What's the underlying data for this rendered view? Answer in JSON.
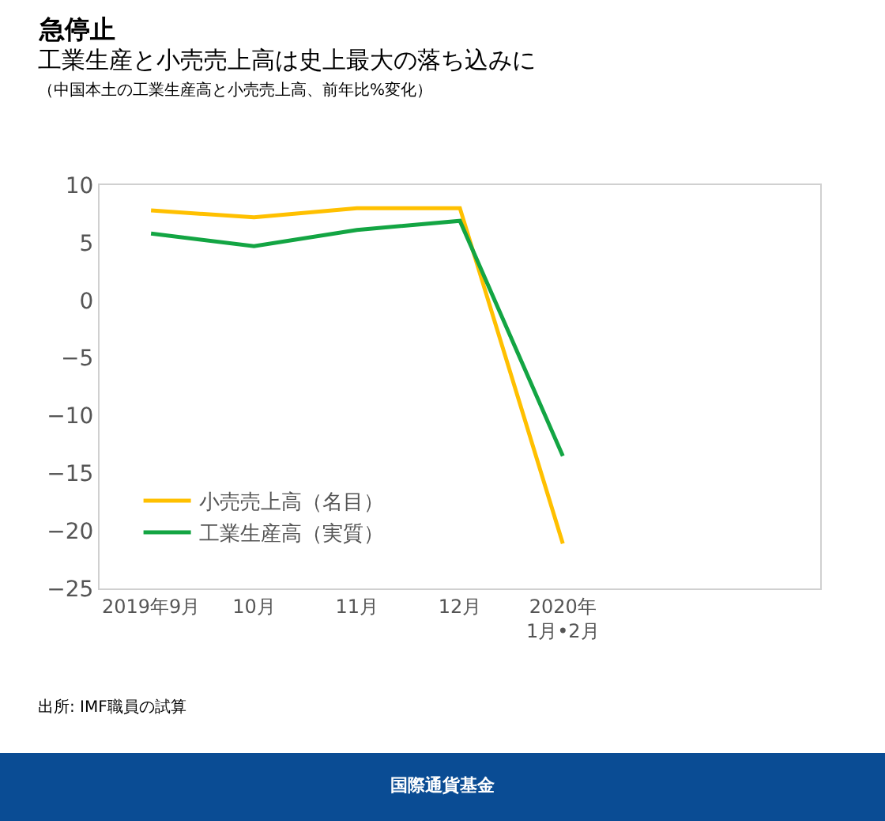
{
  "chart_data": {
    "type": "line",
    "title": "急停止",
    "subtitle": "工業生産と小売売上高は史上最大の落ち込みに",
    "categories": [
      "2019年9月",
      "10月",
      "11月",
      "12月",
      "2020年\n1月•2月",
      null,
      null
    ],
    "series": [
      {
        "name": "小売売上高（名目）",
        "color": "#ffc000",
        "values": [
          7.8,
          7.2,
          8.0,
          8.0,
          -21.1,
          null,
          null
        ]
      },
      {
        "name": "工業生産高（実質）",
        "color": "#13a543",
        "values": [
          5.8,
          4.7,
          6.1,
          6.9,
          -13.5,
          null,
          null
        ]
      }
    ],
    "ylim": [
      -25,
      10
    ],
    "yticks": [
      -25,
      -20,
      -15,
      -10,
      -5,
      0,
      5,
      10
    ],
    "legend": "bottom left",
    "marker": "none",
    "line_style": "solid",
    "annotations": [
      "（中国本土の工業生産高と小売売上高、前年比%変化）",
      "出所: IMF職員の試算",
      "国際通貨基金"
    ]
  }
}
